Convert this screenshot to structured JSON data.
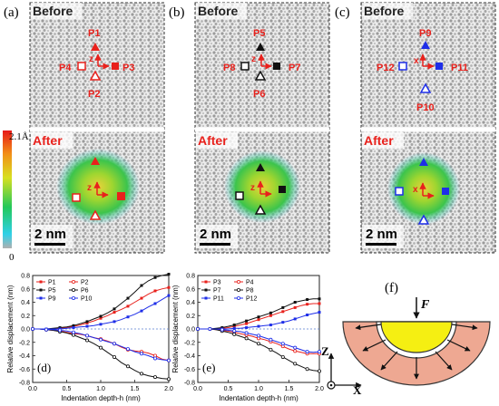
{
  "panels": {
    "a": {
      "letter": "(a)",
      "before": "Before",
      "after": "After",
      "scale": "2 nm",
      "p_top": "P1",
      "p_bottom": "P2",
      "p_right": "P3",
      "p_left": "P4",
      "axis": "z"
    },
    "b": {
      "letter": "(b)",
      "before": "Before",
      "after": "After",
      "scale": "2 nm",
      "p_top": "P5",
      "p_bottom": "P6",
      "p_right": "P7",
      "p_left": "P8",
      "axis": "z"
    },
    "c": {
      "letter": "(c)",
      "before": "Before",
      "after": "After",
      "scale": "2 nm",
      "p_top": "P9",
      "p_bottom": "P10",
      "p_right": "P11",
      "p_left": "P12",
      "axis": "x"
    }
  },
  "colorbar": {
    "max_label": "2.1Å",
    "min_label": "0"
  },
  "colors": {
    "marker_red": "#e8211c",
    "marker_black": "#111111",
    "marker_blue": "#1e2ee8",
    "label_red": "#e8211c",
    "hemisphere": "#f5ef12",
    "ring": "#eea892"
  },
  "chart_data": [
    {
      "type": "line",
      "panel_letter": "(d)",
      "xlabel": "Indentation depth-h (nm)",
      "ylabel": "Relative displacement (nm)",
      "xlim": [
        0.0,
        2.0
      ],
      "ylim": [
        -0.8,
        0.8
      ],
      "xticks": [
        "0.0",
        "0.5",
        "1.0",
        "1.5",
        "2.0"
      ],
      "yticks": [
        "-0.8",
        "-0.6",
        "-0.4",
        "-0.2",
        "0.0",
        "0.2",
        "0.4",
        "0.6",
        "0.8"
      ],
      "x": [
        0.0,
        0.1,
        0.2,
        0.3,
        0.4,
        0.5,
        0.6,
        0.7,
        0.8,
        0.9,
        1.0,
        1.1,
        1.2,
        1.3,
        1.4,
        1.5,
        1.6,
        1.7,
        1.8,
        1.9,
        2.0
      ],
      "series": [
        {
          "name": "P1",
          "color": "#e8211c",
          "marker": "square-filled",
          "values": [
            0.0,
            0.0,
            0.0,
            0.0,
            0.01,
            0.02,
            0.04,
            0.06,
            0.09,
            0.12,
            0.16,
            0.2,
            0.25,
            0.29,
            0.34,
            0.4,
            0.46,
            0.52,
            0.57,
            0.6,
            0.62
          ]
        },
        {
          "name": "P2",
          "color": "#e8211c",
          "marker": "circle-open",
          "values": [
            0.0,
            0.0,
            -0.01,
            -0.02,
            -0.03,
            -0.05,
            -0.07,
            -0.08,
            -0.1,
            -0.13,
            -0.15,
            -0.18,
            -0.22,
            -0.27,
            -0.31,
            -0.33,
            -0.34,
            -0.36,
            -0.4,
            -0.45,
            -0.47
          ]
        },
        {
          "name": "P5",
          "color": "#111111",
          "marker": "square-filled",
          "values": [
            0.0,
            0.0,
            0.0,
            0.01,
            0.02,
            0.03,
            0.05,
            0.08,
            0.11,
            0.15,
            0.19,
            0.24,
            0.3,
            0.38,
            0.46,
            0.55,
            0.65,
            0.72,
            0.77,
            0.8,
            0.82
          ]
        },
        {
          "name": "P6",
          "color": "#111111",
          "marker": "circle-open",
          "values": [
            0.0,
            0.0,
            -0.01,
            -0.02,
            -0.04,
            -0.06,
            -0.09,
            -0.13,
            -0.17,
            -0.22,
            -0.28,
            -0.35,
            -0.42,
            -0.5,
            -0.56,
            -0.62,
            -0.67,
            -0.7,
            -0.72,
            -0.74,
            -0.75
          ]
        },
        {
          "name": "P9",
          "color": "#1e2ee8",
          "marker": "square-filled",
          "values": [
            0.0,
            0.0,
            0.0,
            0.0,
            0.0,
            0.01,
            0.02,
            0.03,
            0.04,
            0.05,
            0.07,
            0.09,
            0.11,
            0.14,
            0.18,
            0.22,
            0.27,
            0.33,
            0.38,
            0.44,
            0.5
          ]
        },
        {
          "name": "P10",
          "color": "#1e2ee8",
          "marker": "circle-open",
          "values": [
            0.0,
            0.0,
            -0.01,
            -0.01,
            -0.02,
            -0.03,
            -0.05,
            -0.07,
            -0.1,
            -0.13,
            -0.16,
            -0.19,
            -0.22,
            -0.26,
            -0.3,
            -0.34,
            -0.37,
            -0.4,
            -0.44,
            -0.46,
            -0.47
          ]
        }
      ]
    },
    {
      "type": "line",
      "panel_letter": "(e)",
      "xlabel": "Indentation depth-h (nm)",
      "ylabel": "Relative displacement (nm)",
      "xlim": [
        0.0,
        2.0
      ],
      "ylim": [
        -0.8,
        0.8
      ],
      "xticks": [
        "0.0",
        "0.5",
        "1.0",
        "1.5",
        "2.0"
      ],
      "yticks": [
        "-0.8",
        "-0.6",
        "-0.4",
        "-0.2",
        "0.0",
        "0.2",
        "0.4",
        "0.6",
        "0.8"
      ],
      "x": [
        0.0,
        0.1,
        0.2,
        0.3,
        0.4,
        0.5,
        0.6,
        0.7,
        0.8,
        0.9,
        1.0,
        1.1,
        1.2,
        1.3,
        1.4,
        1.5,
        1.6,
        1.7,
        1.8,
        1.9,
        2.0
      ],
      "series": [
        {
          "name": "P3",
          "color": "#e8211c",
          "marker": "square-filled",
          "values": [
            0.0,
            0.0,
            0.0,
            0.0,
            0.01,
            0.02,
            0.04,
            0.06,
            0.08,
            0.11,
            0.14,
            0.17,
            0.2,
            0.23,
            0.26,
            0.29,
            0.32,
            0.35,
            0.37,
            0.38,
            0.38
          ]
        },
        {
          "name": "P4",
          "color": "#e8211c",
          "marker": "circle-open",
          "values": [
            0.0,
            0.0,
            0.0,
            -0.01,
            -0.02,
            -0.03,
            -0.05,
            -0.07,
            -0.09,
            -0.11,
            -0.14,
            -0.16,
            -0.19,
            -0.22,
            -0.26,
            -0.3,
            -0.33,
            -0.35,
            -0.37,
            -0.37,
            -0.37
          ]
        },
        {
          "name": "P7",
          "color": "#111111",
          "marker": "square-filled",
          "values": [
            0.0,
            0.0,
            0.0,
            0.01,
            0.02,
            0.04,
            0.06,
            0.09,
            0.12,
            0.15,
            0.18,
            0.21,
            0.24,
            0.28,
            0.32,
            0.36,
            0.4,
            0.42,
            0.44,
            0.45,
            0.45
          ]
        },
        {
          "name": "P8",
          "color": "#111111",
          "marker": "circle-open",
          "values": [
            0.0,
            0.0,
            0.0,
            -0.01,
            -0.03,
            -0.05,
            -0.08,
            -0.11,
            -0.14,
            -0.18,
            -0.22,
            -0.26,
            -0.31,
            -0.36,
            -0.42,
            -0.47,
            -0.52,
            -0.56,
            -0.6,
            -0.62,
            -0.63
          ]
        },
        {
          "name": "P11",
          "color": "#1e2ee8",
          "marker": "square-filled",
          "values": [
            0.0,
            0.0,
            0.0,
            0.0,
            0.0,
            0.0,
            0.01,
            0.01,
            0.02,
            0.03,
            0.04,
            0.05,
            0.06,
            0.08,
            0.1,
            0.12,
            0.15,
            0.18,
            0.21,
            0.23,
            0.25
          ]
        },
        {
          "name": "P12",
          "color": "#1e2ee8",
          "marker": "circle-open",
          "values": [
            0.0,
            0.0,
            0.0,
            0.0,
            -0.01,
            -0.02,
            -0.03,
            -0.04,
            -0.06,
            -0.08,
            -0.1,
            -0.13,
            -0.16,
            -0.19,
            -0.22,
            -0.25,
            -0.28,
            -0.31,
            -0.34,
            -0.35,
            -0.34
          ]
        }
      ]
    }
  ],
  "diagram_f": {
    "letter": "(f)",
    "force_label": "F",
    "axis_z": "Z",
    "axis_x": "X"
  }
}
